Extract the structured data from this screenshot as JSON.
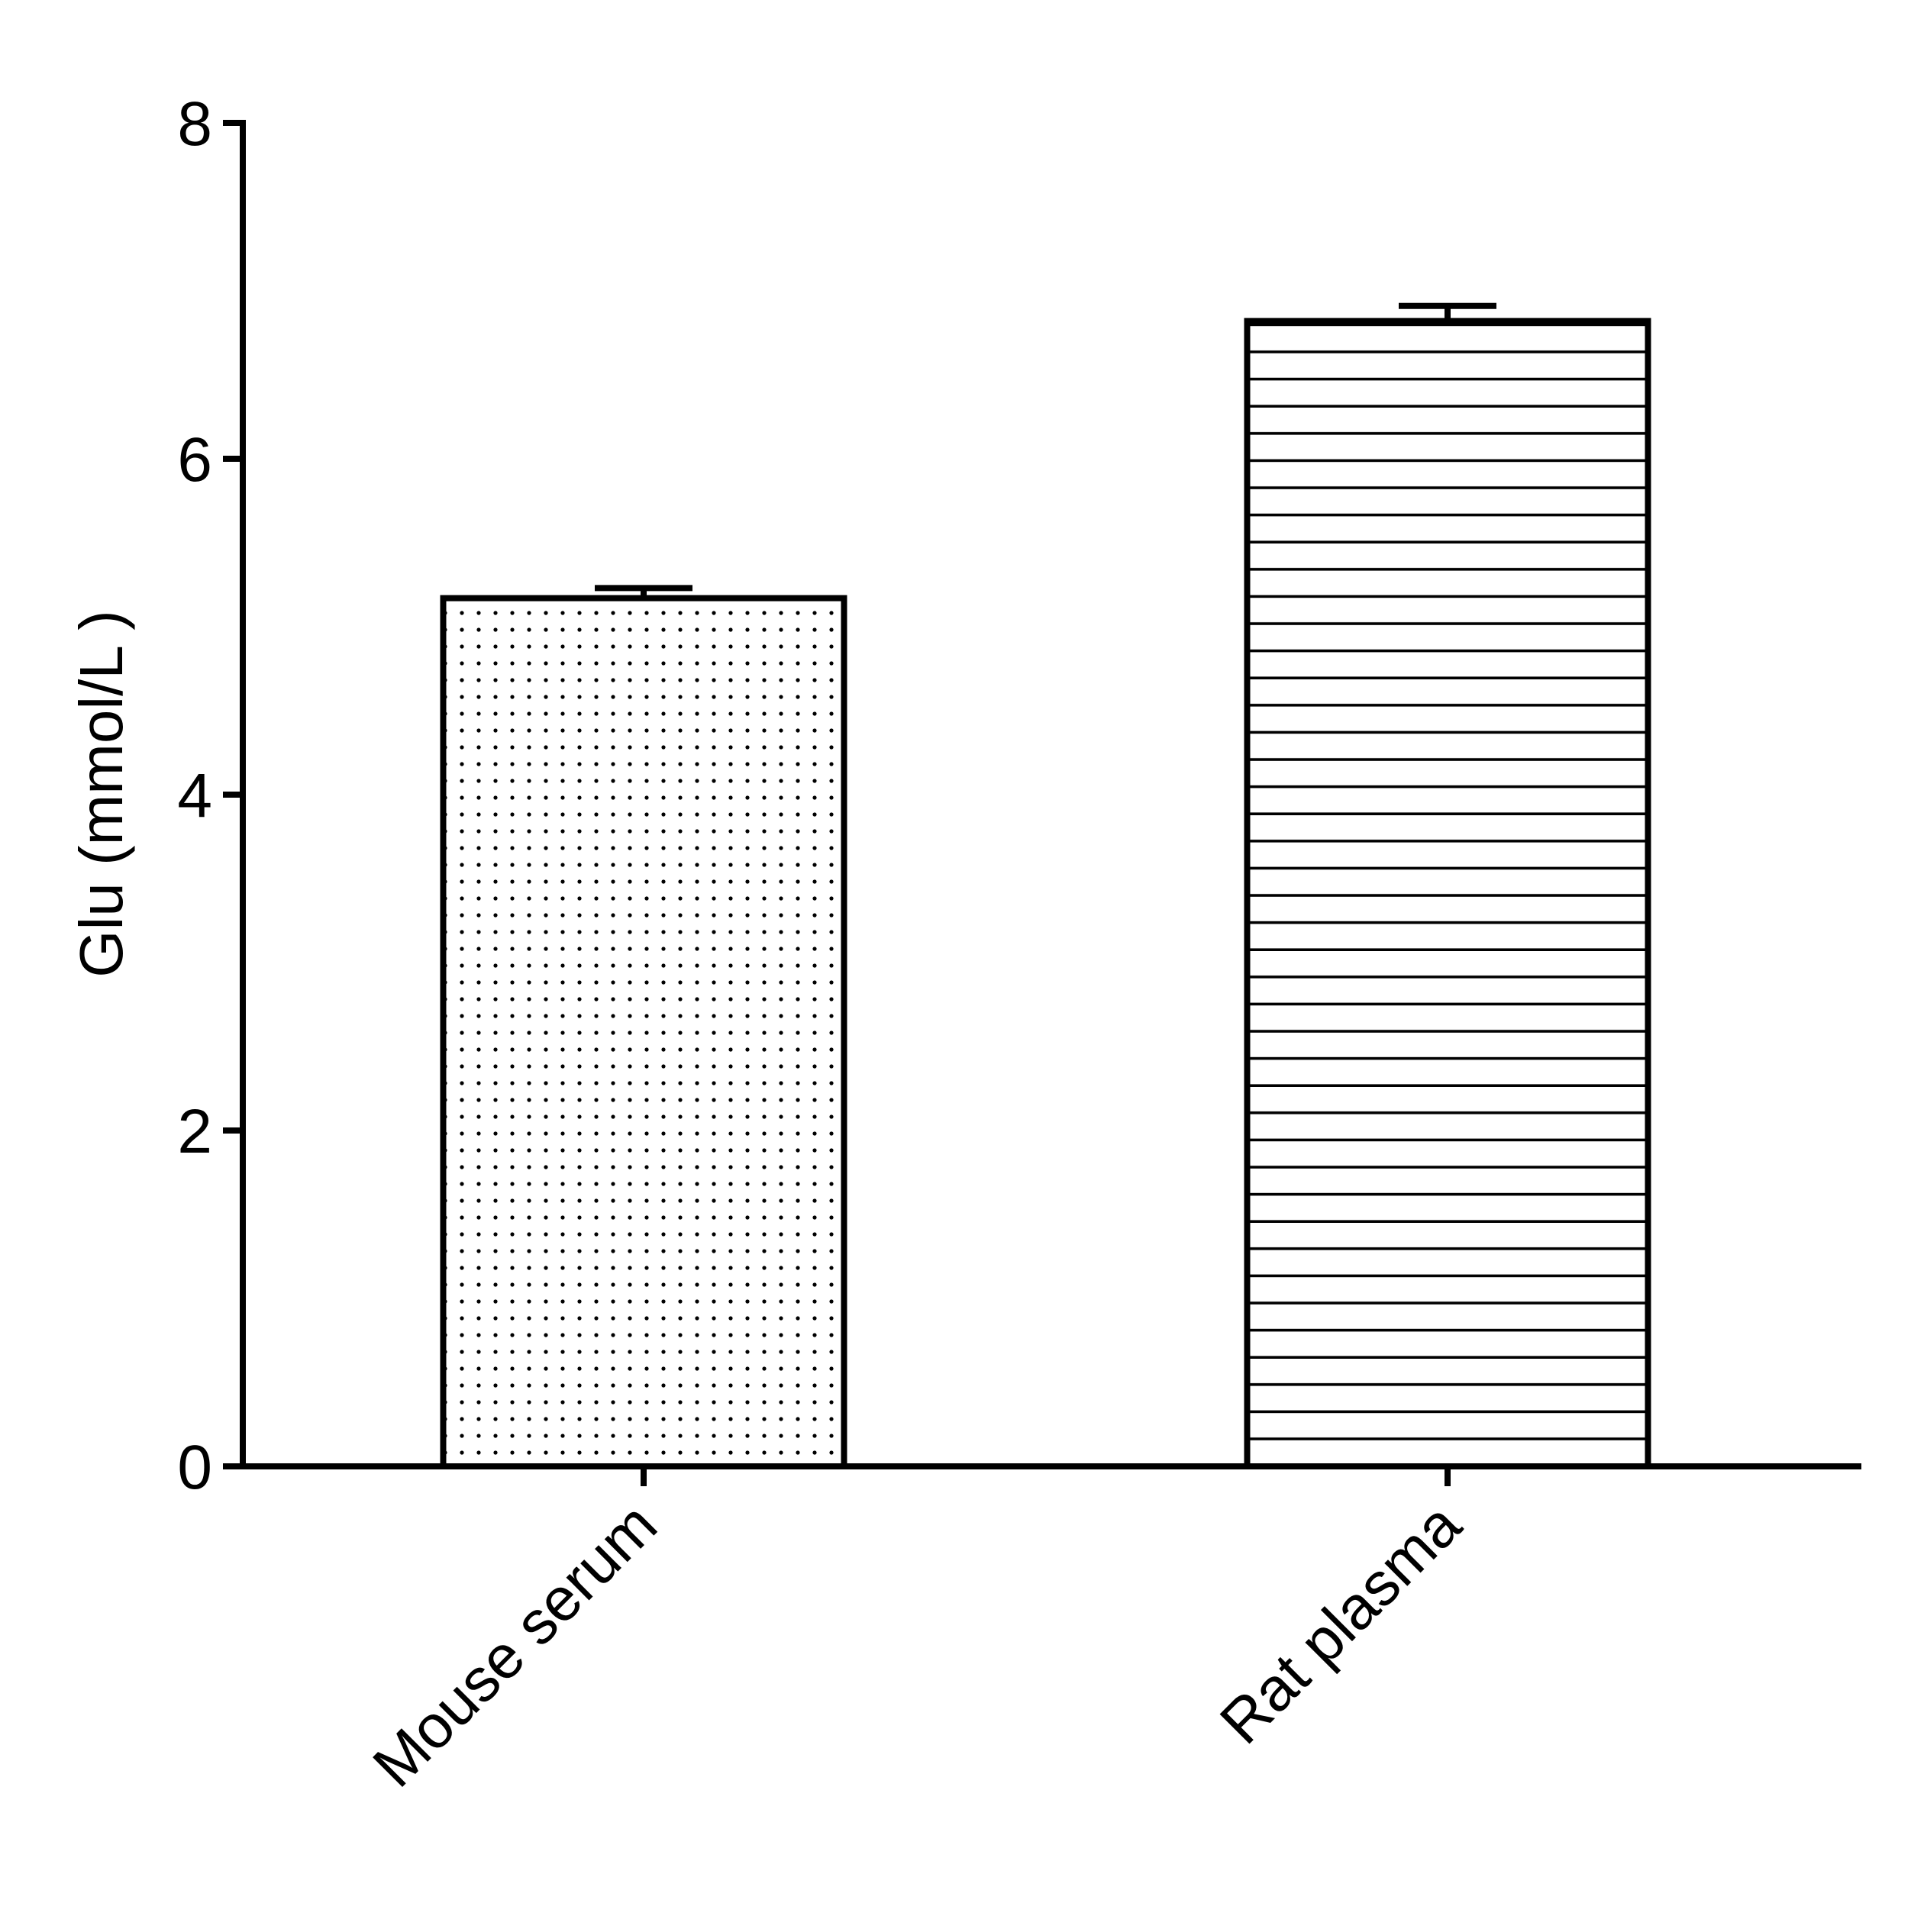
{
  "chart_data": {
    "type": "bar",
    "title": "",
    "xlabel": "",
    "ylabel": "Glu (mmol/L )",
    "ylim": [
      0,
      8
    ],
    "yticks": [
      0,
      2,
      4,
      6,
      8
    ],
    "grid": false,
    "categories": [
      "Mouse serum",
      "Rat plasma"
    ],
    "values": [
      5.17,
      6.82
    ],
    "errors": [
      0.06,
      0.09
    ],
    "patterns": [
      "dots",
      "horizontal-lines"
    ],
    "bar_edge_color": "#000000",
    "bar_fill_color": "#ffffff"
  }
}
